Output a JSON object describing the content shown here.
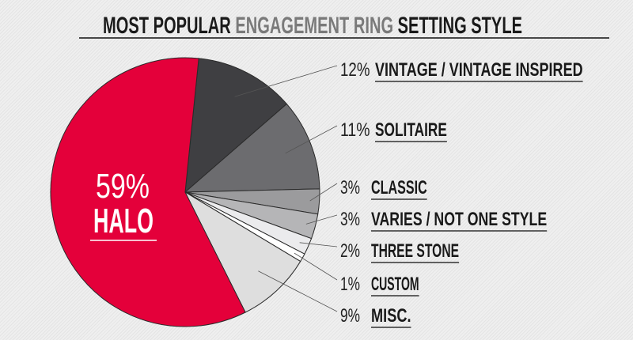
{
  "chart_data": {
    "type": "pie",
    "title_parts": [
      {
        "text": "MOST POPULAR ",
        "color": "#1a1a1a"
      },
      {
        "text": "ENGAGEMENT RING",
        "color": "#7a7a7a"
      },
      {
        "text": " SETTING STYLE",
        "color": "#1a1a1a"
      }
    ],
    "slices": [
      {
        "label": "VINTAGE / VINTAGE INSPIRED",
        "value": 12,
        "value_label": "12%",
        "color": "#3f3f42"
      },
      {
        "label": "SOLITAIRE",
        "value": 11,
        "value_label": "11%",
        "color": "#6c6c6f"
      },
      {
        "label": "CLASSIC",
        "value": 3,
        "value_label": "3%",
        "color": "#9b9b9d"
      },
      {
        "label": "VARIES / NOT ONE STYLE",
        "value": 3,
        "value_label": "3%",
        "color": "#b5b5b7"
      },
      {
        "label": "THREE STONE",
        "value": 2,
        "value_label": "2%",
        "color": "#ebebed"
      },
      {
        "label": "CUSTOM",
        "value": 1,
        "value_label": "1%",
        "color": "#ffffff"
      },
      {
        "label": "MISC.",
        "value": 9,
        "value_label": "9%",
        "color": "#dedede"
      },
      {
        "label": "HALO",
        "value": 59,
        "value_label": "59%",
        "color": "#e4003a"
      }
    ]
  }
}
